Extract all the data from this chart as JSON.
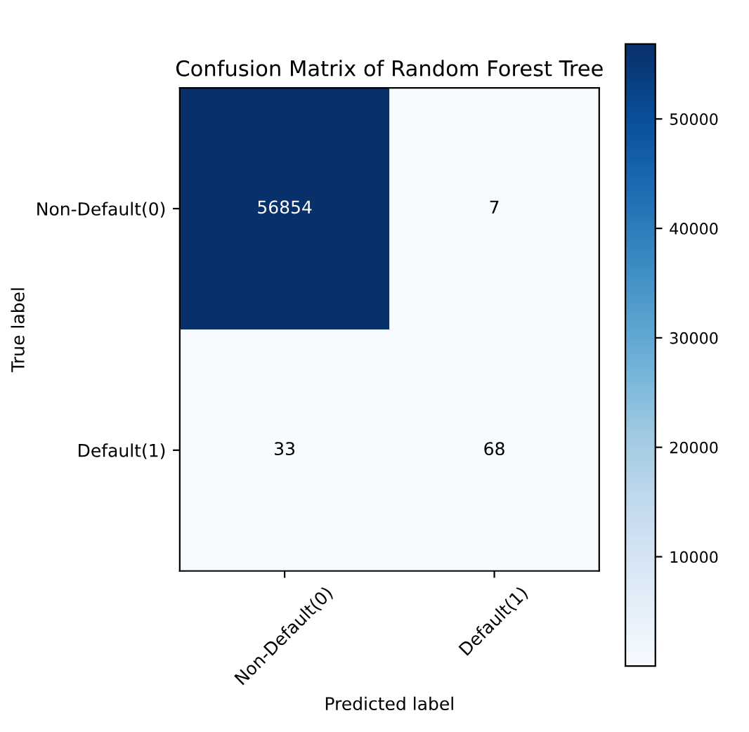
{
  "chart_data": {
    "type": "heatmap",
    "title": "Confusion Matrix of Random Forest Tree",
    "xlabel": "Predicted label",
    "ylabel": "True label",
    "categories": [
      "Non-Default(0)",
      "Default(1)"
    ],
    "y_categories": [
      "Non-Default(0)",
      "Default(1)"
    ],
    "cells": [
      [
        56854,
        7
      ],
      [
        33,
        68
      ]
    ],
    "data_labels": true,
    "clim": [
      7,
      56854
    ],
    "cticks": [
      10000,
      20000,
      30000,
      40000,
      50000
    ],
    "grid": false
  }
}
